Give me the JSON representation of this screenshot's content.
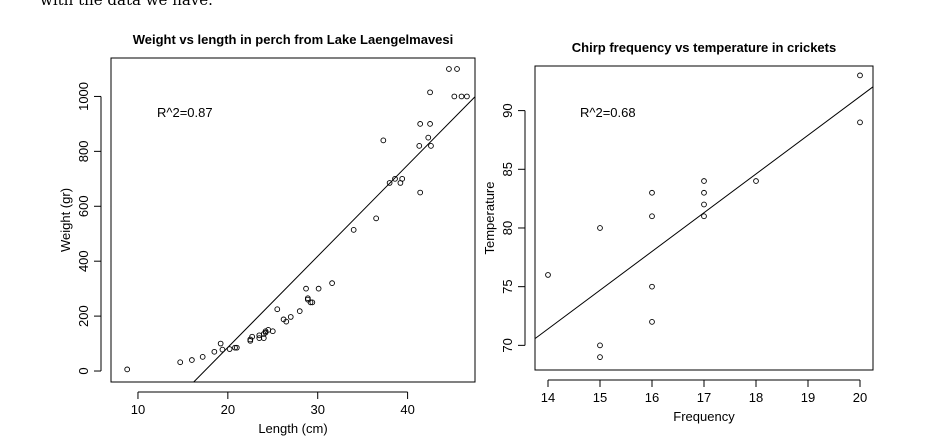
{
  "page_text": "with the data we have.",
  "chart_data": [
    {
      "type": "scatter",
      "title": "Weight vs length in perch from Lake Laengelmavesi",
      "xlabel": "Length (cm)",
      "ylabel": "Weight (gr)",
      "xlim": [
        7,
        47.5
      ],
      "ylim": [
        -40,
        1140
      ],
      "xticks": [
        10,
        20,
        30,
        40
      ],
      "yticks": [
        0,
        200,
        400,
        600,
        800,
        1000
      ],
      "annotation": "R^2=0.87",
      "fit_line": {
        "slope": 33.2,
        "intercept": -578
      },
      "points": [
        [
          8.8,
          5.9
        ],
        [
          14.7,
          32
        ],
        [
          16.0,
          40
        ],
        [
          17.2,
          51.5
        ],
        [
          18.5,
          70
        ],
        [
          19.2,
          100
        ],
        [
          19.4,
          78
        ],
        [
          20.2,
          80
        ],
        [
          20.8,
          85
        ],
        [
          21.0,
          85
        ],
        [
          22.5,
          110
        ],
        [
          22.5,
          115
        ],
        [
          22.7,
          125
        ],
        [
          23.5,
          130
        ],
        [
          24.0,
          120
        ],
        [
          23.5,
          120
        ],
        [
          24.0,
          135
        ],
        [
          24.2,
          145
        ],
        [
          24.5,
          150
        ],
        [
          25.0,
          145
        ],
        [
          24.2,
          140
        ],
        [
          25.5,
          225
        ],
        [
          26.2,
          188
        ],
        [
          26.5,
          180
        ],
        [
          27.0,
          197
        ],
        [
          28.0,
          218
        ],
        [
          28.7,
          300
        ],
        [
          28.9,
          260
        ],
        [
          28.9,
          265
        ],
        [
          29.2,
          250
        ],
        [
          29.4,
          250
        ],
        [
          30.1,
          300
        ],
        [
          31.6,
          320
        ],
        [
          34.0,
          514
        ],
        [
          36.5,
          556
        ],
        [
          37.3,
          840
        ],
        [
          38.0,
          685
        ],
        [
          38.6,
          700
        ],
        [
          39.2,
          685
        ],
        [
          39.4,
          700
        ],
        [
          41.4,
          900
        ],
        [
          41.3,
          820
        ],
        [
          41.4,
          650
        ],
        [
          42.3,
          850
        ],
        [
          42.5,
          900
        ],
        [
          42.5,
          1015
        ],
        [
          42.6,
          820
        ],
        [
          44.6,
          1100
        ],
        [
          45.2,
          1000
        ],
        [
          45.5,
          1100
        ],
        [
          46.0,
          1000
        ],
        [
          46.6,
          1000
        ]
      ]
    },
    {
      "type": "scatter",
      "title": "Chirp frequency vs temperature in crickets",
      "xlabel": "Frequency",
      "ylabel": "Temperature",
      "xlim": [
        13.75,
        20.25
      ],
      "ylim": [
        67.9,
        93.8
      ],
      "xticks": [
        14,
        15,
        16,
        17,
        18,
        19,
        20
      ],
      "yticks": [
        70,
        75,
        80,
        85,
        90
      ],
      "annotation": "R^2=0.68",
      "fit_line": {
        "slope": 3.3,
        "intercept": 25.2
      },
      "points": [
        [
          14,
          76
        ],
        [
          15,
          80
        ],
        [
          15,
          70
        ],
        [
          15,
          69
        ],
        [
          16,
          83
        ],
        [
          16,
          81
        ],
        [
          16,
          75
        ],
        [
          16,
          72
        ],
        [
          17,
          84
        ],
        [
          17,
          83
        ],
        [
          17,
          82
        ],
        [
          17,
          81
        ],
        [
          18,
          84
        ],
        [
          20,
          93
        ],
        [
          20,
          89
        ]
      ]
    }
  ]
}
